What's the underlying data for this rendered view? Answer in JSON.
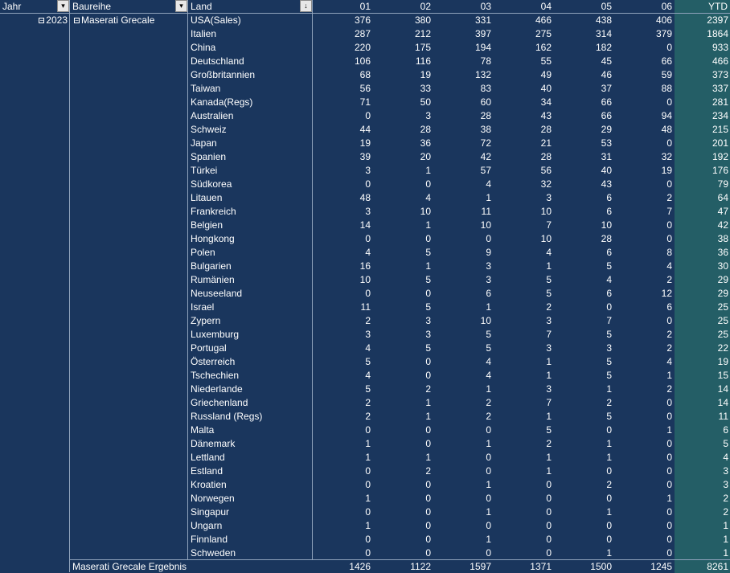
{
  "headers": {
    "jahr": "Jahr",
    "baureihe": "Baureihe",
    "land": "Land",
    "months": [
      "01",
      "02",
      "03",
      "04",
      "05",
      "06"
    ],
    "ytd": "YTD"
  },
  "jahr_value": "2023",
  "baureihe_value": "Maserati Grecale",
  "rows": [
    {
      "land": "USA(Sales)",
      "v": [
        376,
        380,
        331,
        466,
        438,
        406
      ],
      "ytd": 2397
    },
    {
      "land": "Italien",
      "v": [
        287,
        212,
        397,
        275,
        314,
        379
      ],
      "ytd": 1864
    },
    {
      "land": "China",
      "v": [
        220,
        175,
        194,
        162,
        182,
        0
      ],
      "ytd": 933
    },
    {
      "land": "Deutschland",
      "v": [
        106,
        116,
        78,
        55,
        45,
        66
      ],
      "ytd": 466
    },
    {
      "land": "Großbritannien",
      "v": [
        68,
        19,
        132,
        49,
        46,
        59
      ],
      "ytd": 373
    },
    {
      "land": "Taiwan",
      "v": [
        56,
        33,
        83,
        40,
        37,
        88
      ],
      "ytd": 337
    },
    {
      "land": "Kanada(Regs)",
      "v": [
        71,
        50,
        60,
        34,
        66,
        0
      ],
      "ytd": 281
    },
    {
      "land": "Australien",
      "v": [
        0,
        3,
        28,
        43,
        66,
        94
      ],
      "ytd": 234
    },
    {
      "land": "Schweiz",
      "v": [
        44,
        28,
        38,
        28,
        29,
        48
      ],
      "ytd": 215
    },
    {
      "land": "Japan",
      "v": [
        19,
        36,
        72,
        21,
        53,
        0
      ],
      "ytd": 201
    },
    {
      "land": "Spanien",
      "v": [
        39,
        20,
        42,
        28,
        31,
        32
      ],
      "ytd": 192
    },
    {
      "land": "Türkei",
      "v": [
        3,
        1,
        57,
        56,
        40,
        19
      ],
      "ytd": 176
    },
    {
      "land": "Südkorea",
      "v": [
        0,
        0,
        4,
        32,
        43,
        0
      ],
      "ytd": 79
    },
    {
      "land": "Litauen",
      "v": [
        48,
        4,
        1,
        3,
        6,
        2
      ],
      "ytd": 64
    },
    {
      "land": "Frankreich",
      "v": [
        3,
        10,
        11,
        10,
        6,
        7
      ],
      "ytd": 47
    },
    {
      "land": "Belgien",
      "v": [
        14,
        1,
        10,
        7,
        10,
        0
      ],
      "ytd": 42
    },
    {
      "land": "Hongkong",
      "v": [
        0,
        0,
        0,
        10,
        28,
        0
      ],
      "ytd": 38
    },
    {
      "land": "Polen",
      "v": [
        4,
        5,
        9,
        4,
        6,
        8
      ],
      "ytd": 36
    },
    {
      "land": "Bulgarien",
      "v": [
        16,
        1,
        3,
        1,
        5,
        4
      ],
      "ytd": 30
    },
    {
      "land": "Rumänien",
      "v": [
        10,
        5,
        3,
        5,
        4,
        2
      ],
      "ytd": 29
    },
    {
      "land": "Neuseeland",
      "v": [
        0,
        0,
        6,
        5,
        6,
        12
      ],
      "ytd": 29
    },
    {
      "land": "Israel",
      "v": [
        11,
        5,
        1,
        2,
        0,
        6
      ],
      "ytd": 25
    },
    {
      "land": "Zypern",
      "v": [
        2,
        3,
        10,
        3,
        7,
        0
      ],
      "ytd": 25
    },
    {
      "land": "Luxemburg",
      "v": [
        3,
        3,
        5,
        7,
        5,
        2
      ],
      "ytd": 25
    },
    {
      "land": "Portugal",
      "v": [
        4,
        5,
        5,
        3,
        3,
        2
      ],
      "ytd": 22
    },
    {
      "land": "Österreich",
      "v": [
        5,
        0,
        4,
        1,
        5,
        4
      ],
      "ytd": 19
    },
    {
      "land": "Tschechien",
      "v": [
        4,
        0,
        4,
        1,
        5,
        1
      ],
      "ytd": 15
    },
    {
      "land": "Niederlande",
      "v": [
        5,
        2,
        1,
        3,
        1,
        2
      ],
      "ytd": 14
    },
    {
      "land": "Griechenland",
      "v": [
        2,
        1,
        2,
        7,
        2,
        0
      ],
      "ytd": 14
    },
    {
      "land": "Russland (Regs)",
      "v": [
        2,
        1,
        2,
        1,
        5,
        0
      ],
      "ytd": 11
    },
    {
      "land": "Malta",
      "v": [
        0,
        0,
        0,
        5,
        0,
        1
      ],
      "ytd": 6
    },
    {
      "land": "Dänemark",
      "v": [
        1,
        0,
        1,
        2,
        1,
        0
      ],
      "ytd": 5
    },
    {
      "land": "Lettland",
      "v": [
        1,
        1,
        0,
        1,
        1,
        0
      ],
      "ytd": 4
    },
    {
      "land": "Estland",
      "v": [
        0,
        2,
        0,
        1,
        0,
        0
      ],
      "ytd": 3
    },
    {
      "land": "Kroatien",
      "v": [
        0,
        0,
        1,
        0,
        2,
        0
      ],
      "ytd": 3
    },
    {
      "land": "Norwegen",
      "v": [
        1,
        0,
        0,
        0,
        0,
        1
      ],
      "ytd": 2
    },
    {
      "land": "Singapur",
      "v": [
        0,
        0,
        1,
        0,
        1,
        0
      ],
      "ytd": 2
    },
    {
      "land": "Ungarn",
      "v": [
        1,
        0,
        0,
        0,
        0,
        0
      ],
      "ytd": 1
    },
    {
      "land": "Finnland",
      "v": [
        0,
        0,
        1,
        0,
        0,
        0
      ],
      "ytd": 1
    },
    {
      "land": "Schweden",
      "v": [
        0,
        0,
        0,
        0,
        1,
        0
      ],
      "ytd": 1
    }
  ],
  "total": {
    "label": "Maserati Grecale Ergebnis",
    "v": [
      1426,
      1122,
      1597,
      1371,
      1500,
      1245
    ],
    "ytd": 8261
  },
  "colors": {
    "background": "#1a365d",
    "ytd_background": "#245e66",
    "gridline": "#8fa3bb",
    "text": "#ffffff"
  }
}
